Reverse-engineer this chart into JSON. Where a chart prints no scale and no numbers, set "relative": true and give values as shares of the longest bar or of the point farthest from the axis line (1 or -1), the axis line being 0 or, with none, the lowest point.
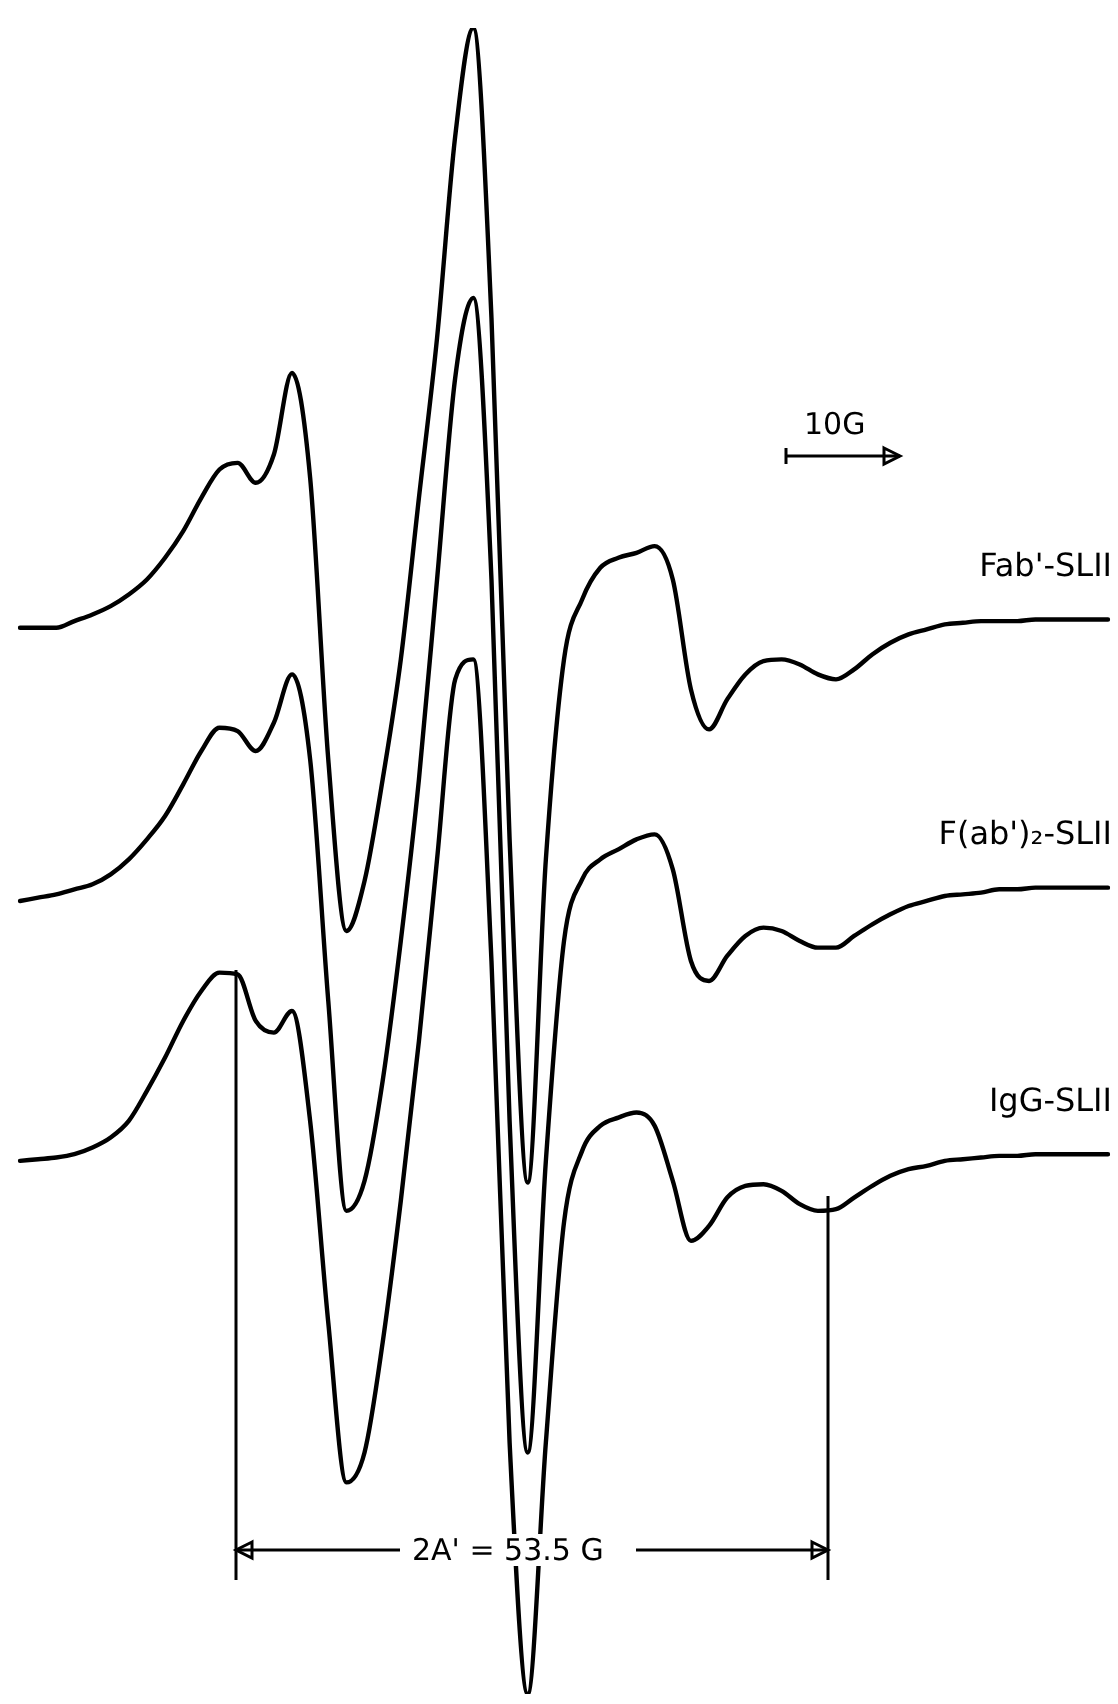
{
  "chart_data": {
    "type": "line",
    "relative": true,
    "legend": false,
    "marker": "none",
    "line_style": "solid",
    "tick_labels": false,
    "categories": [
      null,
      null,
      null,
      null,
      null,
      null,
      null,
      null,
      null,
      null,
      null,
      null,
      null,
      null,
      null,
      null,
      null,
      null,
      null,
      null,
      null,
      null,
      null,
      null,
      null,
      null,
      null,
      null,
      null,
      null,
      null,
      null,
      null,
      null,
      null,
      null,
      null,
      null,
      null,
      null,
      null,
      null,
      null,
      null,
      null,
      null,
      null,
      null,
      null,
      null,
      null,
      null,
      null,
      null,
      null,
      null,
      null,
      null,
      null,
      null,
      null
    ],
    "series": [
      {
        "name": "Fab'-SLII",
        "color": "#000000",
        "values": [
          0.64,
          0.64,
          0.64,
          0.644,
          0.648,
          0.653,
          0.66,
          0.669,
          0.682,
          0.698,
          0.718,
          0.735,
          0.739,
          0.727,
          0.744,
          0.793,
          0.73,
          0.561,
          0.458,
          0.488,
          0.549,
          0.621,
          0.718,
          0.814,
          0.935,
          1,
          0.826,
          0.513,
          0.307,
          0.501,
          0.621,
          0.657,
          0.676,
          0.682,
          0.685,
          0.689,
          0.669,
          0.603,
          0.579,
          0.597,
          0.612,
          0.62,
          0.621,
          0.618,
          0.612,
          0.609,
          0.615,
          0.624,
          0.631,
          0.636,
          0.639,
          0.642,
          0.643,
          0.644,
          0.644,
          0.644,
          0.645,
          0.645,
          0.645,
          0.645,
          0.645
        ]
      },
      {
        "name": "F(ab')₂-SLII",
        "color": "#000000",
        "values": [
          0.476,
          0.478,
          0.48,
          0.483,
          0.486,
          0.492,
          0.501,
          0.513,
          0.527,
          0.546,
          0.566,
          0.58,
          0.578,
          0.566,
          0.583,
          0.612,
          0.561,
          0.416,
          0.29,
          0.308,
          0.368,
          0.452,
          0.549,
          0.669,
          0.79,
          0.838,
          0.669,
          0.344,
          0.145,
          0.32,
          0.452,
          0.489,
          0.501,
          0.507,
          0.513,
          0.516,
          0.495,
          0.44,
          0.428,
          0.443,
          0.455,
          0.46,
          0.458,
          0.452,
          0.448,
          0.448,
          0.455,
          0.462,
          0.468,
          0.473,
          0.476,
          0.479,
          0.48,
          0.481,
          0.483,
          0.483,
          0.484,
          0.484,
          0.484,
          0.484,
          0.484
        ]
      },
      {
        "name": "IgG-SLII",
        "color": "#000000",
        "values": [
          0.32,
          0.321,
          0.322,
          0.324,
          0.328,
          0.334,
          0.344,
          0.362,
          0.382,
          0.404,
          0.422,
          0.433,
          0.432,
          0.404,
          0.397,
          0.41,
          0.344,
          0.223,
          0.127,
          0.145,
          0.211,
          0.296,
          0.392,
          0.501,
          0.609,
          0.621,
          0.44,
          0.151,
          0,
          0.151,
          0.283,
          0.326,
          0.341,
          0.346,
          0.349,
          0.341,
          0.308,
          0.272,
          0.281,
          0.298,
          0.305,
          0.306,
          0.302,
          0.294,
          0.29,
          0.291,
          0.298,
          0.305,
          0.311,
          0.315,
          0.317,
          0.32,
          0.321,
          0.322,
          0.323,
          0.323,
          0.324,
          0.324,
          0.324,
          0.324,
          0.324
        ]
      }
    ],
    "annotations": [
      "10G",
      "2A' = 53.5 G"
    ]
  }
}
